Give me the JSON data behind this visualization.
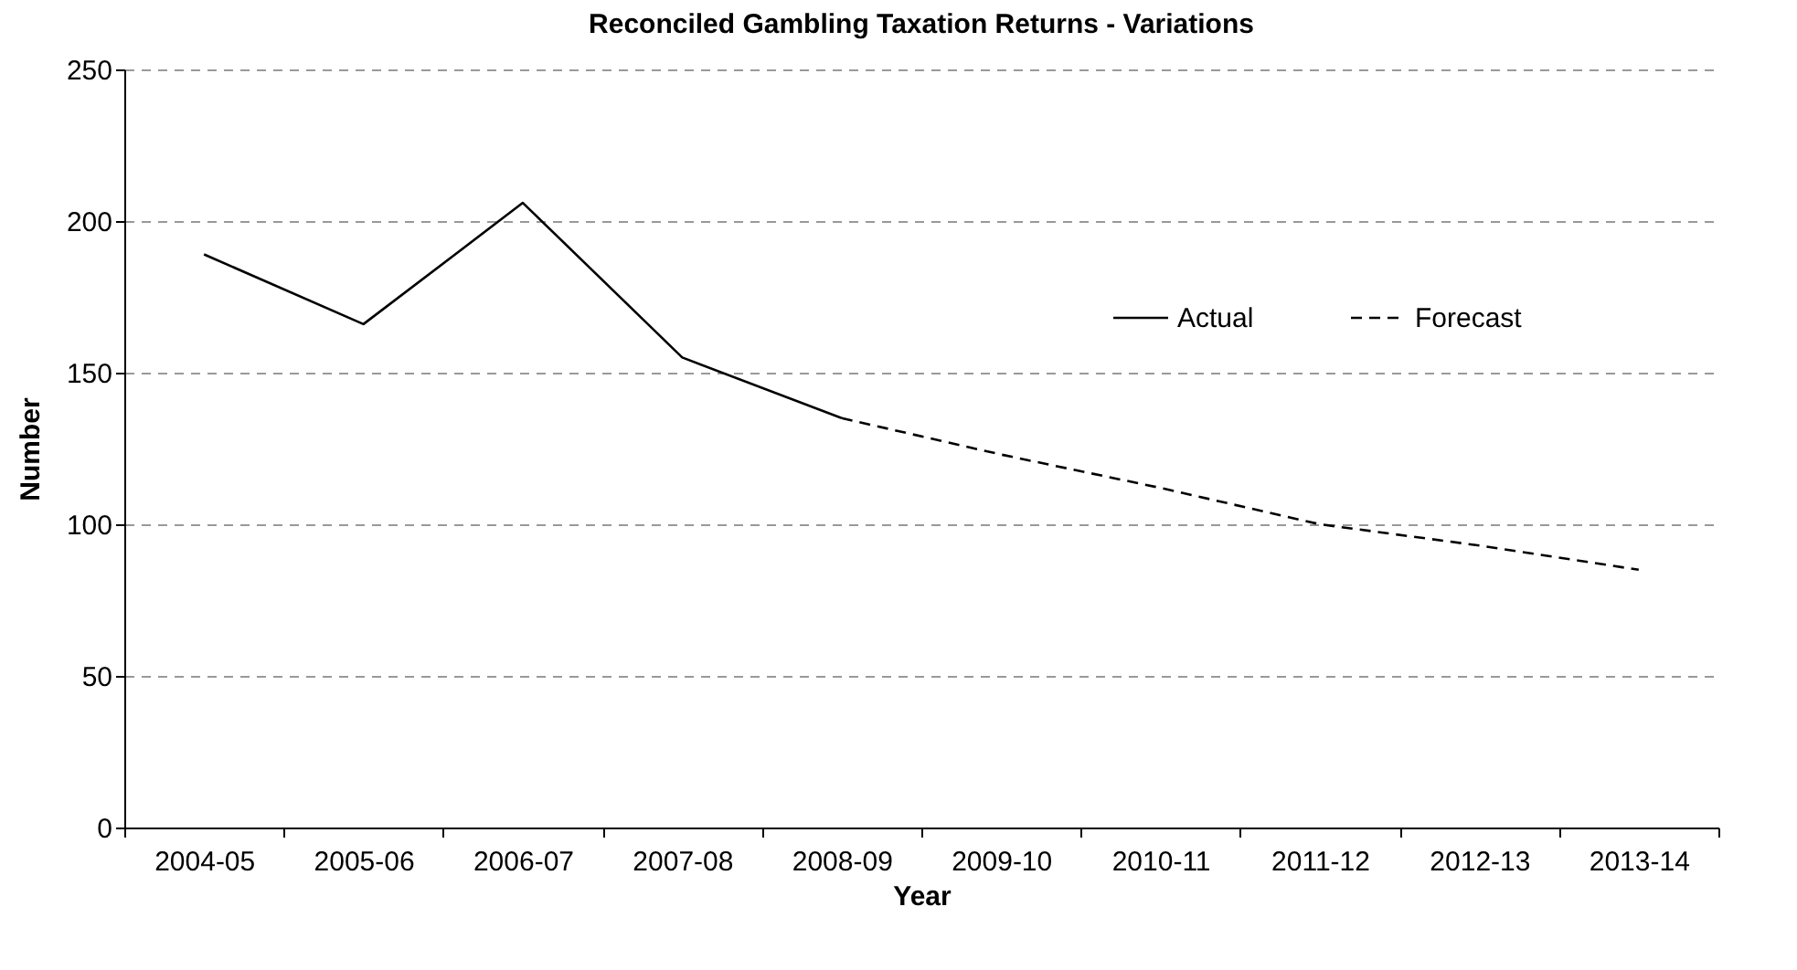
{
  "chart_data": {
    "type": "line",
    "title": "Reconciled Gambling Taxation Returns - Variations",
    "xlabel": "Year",
    "ylabel": "Number",
    "categories": [
      "2004-05",
      "2005-06",
      "2006-07",
      "2007-08",
      "2008-09",
      "2009-10",
      "2010-11",
      "2011-12",
      "2012-13",
      "2013-14"
    ],
    "series": [
      {
        "name": "Actual",
        "color": "#000000",
        "line_style": "solid",
        "values": [
          189,
          166,
          206,
          155,
          135,
          null,
          null,
          null,
          null,
          null
        ]
      },
      {
        "name": "Forecast",
        "color": "#000000",
        "line_style": "dashed",
        "values": [
          null,
          null,
          null,
          null,
          135,
          123,
          112,
          100,
          93,
          85
        ]
      }
    ],
    "ylim": [
      0,
      250
    ],
    "yticks": [
      0,
      50,
      100,
      150,
      200,
      250
    ],
    "grid": "y",
    "legend": "top right",
    "marker": "none"
  }
}
